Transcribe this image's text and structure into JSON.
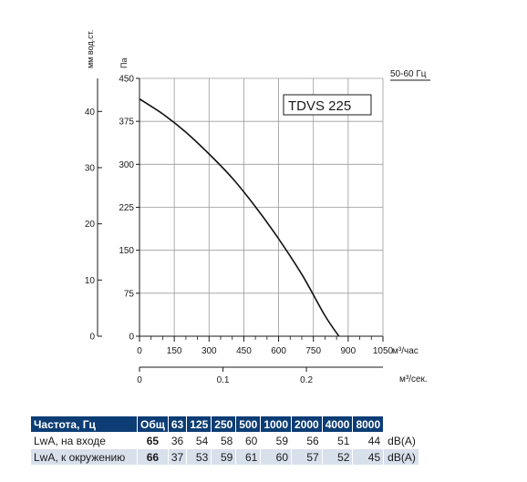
{
  "chart_data": {
    "type": "line",
    "model_label": "TDVS 225",
    "frequency_label": "50-60 Гц",
    "y_left_label": "мм вод.ст.",
    "y_right_label": "Па",
    "x_label": "м³/час",
    "x2_label": "м³/сек.",
    "x_ticks": [
      "0",
      "150",
      "300",
      "450",
      "600",
      "750",
      "900",
      "1050"
    ],
    "y_pa_ticks": [
      "0",
      "75",
      "150",
      "225",
      "300",
      "375",
      "450"
    ],
    "y_mm_ticks": [
      "0",
      "10",
      "20",
      "30",
      "40"
    ],
    "x2_ticks": [
      "0",
      "0.1",
      "0.2"
    ],
    "xlim": [
      0,
      1050
    ],
    "ylim": [
      0,
      450
    ],
    "grid": true,
    "series": [
      {
        "x": [
          0,
          100,
          200,
          300,
          400,
          500,
          600,
          700,
          800,
          860
        ],
        "y": [
          414,
          388,
          356,
          318,
          276,
          226,
          170,
          108,
          36,
          0
        ]
      }
    ]
  },
  "table": {
    "headers": [
      "Частота, Гц",
      "Общ",
      "63",
      "125",
      "250",
      "500",
      "1000",
      "2000",
      "4000",
      "8000"
    ],
    "rows": [
      {
        "label": "LwA, на входе",
        "total": "65",
        "values": [
          "36",
          "54",
          "58",
          "60",
          "59",
          "56",
          "51",
          "44"
        ],
        "unit": "dB(A)"
      },
      {
        "label": "LwA, к окружению",
        "total": "66",
        "values": [
          "37",
          "53",
          "59",
          "61",
          "60",
          "57",
          "52",
          "45"
        ],
        "unit": "dB(A)"
      }
    ]
  }
}
